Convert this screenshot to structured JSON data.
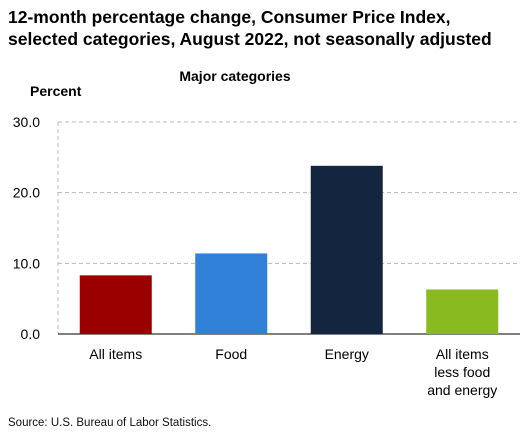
{
  "title_lines": [
    "12-month percentage change, Consumer Price Index,",
    "selected categories, August 2022, not seasonally adjusted"
  ],
  "source": "Source: U.S. Bureau of Labor Statistics.",
  "chart_data": {
    "type": "bar",
    "subtitle": "Major categories",
    "ylabel": "Percent",
    "categories": [
      [
        "All items"
      ],
      [
        "Food"
      ],
      [
        "Energy"
      ],
      [
        "All items",
        "less food",
        "and energy"
      ]
    ],
    "values": [
      8.3,
      11.4,
      23.8,
      6.3
    ],
    "colors": [
      "#9a0000",
      "#2f80d6",
      "#13253f",
      "#89bb21"
    ],
    "ylim": [
      0,
      30
    ],
    "yticks": [
      "0.0",
      "10.0",
      "20.0",
      "30.0"
    ],
    "grid": "horizontal dashed"
  }
}
